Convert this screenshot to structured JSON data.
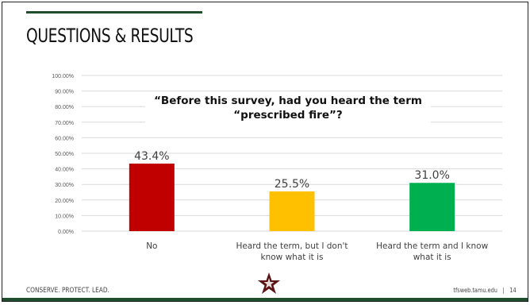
{
  "slide": {
    "title": "QUESTIONS & RESULTS",
    "question": "“Before this survey, had you heard the term “prescribed fire”?",
    "footer_left": "CONSERVE. PROTECT. LEAD.",
    "footer_right": "tfsweb.tamu.edu",
    "page_number": "14",
    "divider": "|",
    "logo_icon": "texas-star-logo-icon",
    "accent_color": "#1f4e2c"
  },
  "chart_data": {
    "type": "bar",
    "title": "“Before this survey, had you heard the term “prescribed fire”?",
    "categories": [
      [
        "No"
      ],
      [
        "Heard the term, but I don't",
        "know what it is"
      ],
      [
        "Heard the term and I know",
        "what it is"
      ]
    ],
    "values": [
      43.4,
      25.5,
      31.0
    ],
    "data_labels": [
      "43.4%",
      "25.5%",
      "31.0%"
    ],
    "colors": [
      "#c00000",
      "#ffc000",
      "#00b050"
    ],
    "yticks": [
      "0.00%",
      "10.00%",
      "20.00%",
      "30.00%",
      "40.00%",
      "50.00%",
      "60.00%",
      "70.00%",
      "80.00%",
      "90.00%",
      "100.00%"
    ],
    "ylim": [
      0,
      100
    ],
    "grid": true,
    "legend": false
  }
}
